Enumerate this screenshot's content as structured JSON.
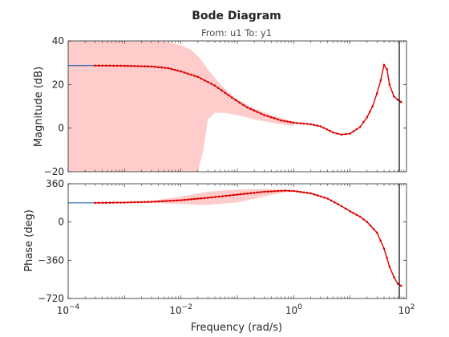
{
  "title": "Bode Diagram",
  "subtitle": "From: u1  To: y1",
  "xlabel": "Frequency  (rad/s)",
  "colors": {
    "band": "#ffcccc",
    "data": "#dd0000",
    "model": "#1f5fb0",
    "frame": "#262626"
  },
  "chart_data": [
    {
      "type": "line",
      "panel": "magnitude",
      "ylabel": "Magnitude (dB)",
      "xscale": "log",
      "xlim": [
        0.0001,
        100
      ],
      "ylim": [
        -20,
        40
      ],
      "yticks": [
        -20,
        0,
        20,
        40
      ],
      "xticks": [
        0.0001,
        0.01,
        1,
        100
      ],
      "series": [
        {
          "role": "model",
          "x": [
            0.0001,
            0.0003
          ],
          "y": [
            28.7,
            28.7
          ]
        },
        {
          "role": "data",
          "x": [
            0.0003,
            0.001,
            0.003,
            0.006,
            0.01,
            0.02,
            0.04,
            0.08,
            0.15,
            0.3,
            0.6,
            1,
            2,
            3,
            5,
            7,
            10,
            15,
            20,
            25,
            30,
            35,
            40,
            45,
            50,
            60,
            70,
            80
          ],
          "y": [
            28.7,
            28.6,
            28.3,
            27.5,
            26,
            23.5,
            19.5,
            14,
            9.5,
            6,
            3.5,
            2.5,
            1.8,
            0.8,
            -2,
            -3,
            -2.5,
            0.5,
            5,
            10,
            16,
            22,
            29,
            27,
            20,
            14.5,
            13,
            12
          ]
        },
        {
          "role": "uncertainty_band",
          "x": [
            0.0001,
            0.0003,
            0.001,
            0.003,
            0.006,
            0.01,
            0.015,
            0.02,
            0.025,
            0.03,
            0.04,
            0.06,
            0.1,
            0.2,
            0.4,
            0.7,
            1
          ],
          "upper": [
            40,
            40,
            40,
            40,
            39.5,
            38,
            36,
            33,
            30,
            27,
            23,
            18,
            13,
            9,
            6,
            4,
            3
          ],
          "lower": [
            -20,
            -20,
            -20,
            -20,
            -20,
            -20,
            -20,
            -20,
            -10,
            4,
            7,
            7,
            6,
            4,
            2.5,
            1.5,
            1
          ]
        }
      ]
    },
    {
      "type": "line",
      "panel": "phase",
      "ylabel": "Phase (deg)",
      "xscale": "log",
      "xlim": [
        0.0001,
        100
      ],
      "ylim": [
        -720,
        360
      ],
      "yticks": [
        -720,
        -360,
        0,
        360
      ],
      "xticks": [
        0.0001,
        0.01,
        1,
        100
      ],
      "series": [
        {
          "role": "model",
          "x": [
            0.0001,
            0.0003
          ],
          "y": [
            180,
            180
          ]
        },
        {
          "role": "data",
          "x": [
            0.0003,
            0.001,
            0.003,
            0.01,
            0.03,
            0.1,
            0.3,
            0.7,
            1,
            2,
            4,
            7,
            10,
            15,
            20,
            30,
            40,
            50,
            60,
            70,
            80
          ],
          "y": [
            180,
            183,
            190,
            205,
            228,
            258,
            285,
            295,
            292,
            270,
            220,
            150,
            100,
            50,
            0,
            -100,
            -250,
            -420,
            -520,
            -580,
            -600
          ]
        },
        {
          "role": "uncertainty_band",
          "x": [
            0.001,
            0.003,
            0.01,
            0.03,
            0.1,
            0.3,
            0.7,
            1,
            2,
            4
          ],
          "upper": [
            185,
            200,
            240,
            285,
            305,
            310,
            305,
            298,
            278,
            225
          ],
          "lower": [
            182,
            180,
            170,
            160,
            185,
            240,
            280,
            285,
            262,
            215
          ]
        }
      ]
    }
  ]
}
